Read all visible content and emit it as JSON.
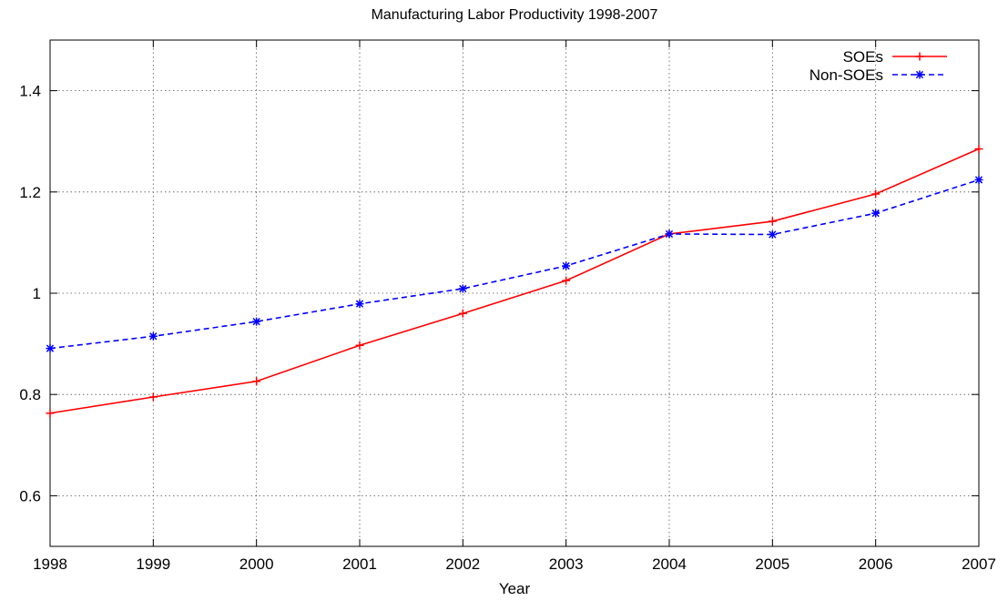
{
  "chart_data": {
    "type": "line",
    "title": "Manufacturing Labor Productivity 1998-2007",
    "xlabel": "Year",
    "ylabel": "",
    "x": [
      1998,
      1999,
      2000,
      2001,
      2002,
      2003,
      2004,
      2005,
      2006,
      2007
    ],
    "xlim": [
      1998,
      2007
    ],
    "ylim": [
      0.5,
      1.5
    ],
    "yticks": [
      0.6,
      0.8,
      1.0,
      1.2,
      1.4
    ],
    "ytick_labels": [
      "0.6",
      "0.8",
      "1",
      "1.2",
      "1.4"
    ],
    "xtick_labels": [
      "1998",
      "1999",
      "2000",
      "2001",
      "2002",
      "2003",
      "2004",
      "2005",
      "2006",
      "2007"
    ],
    "grid": true,
    "legend_position": "top-right",
    "series": [
      {
        "name": "SOEs",
        "color": "#ff0000",
        "line_style": "solid",
        "marker": "plus",
        "values": [
          0.763,
          0.795,
          0.826,
          0.897,
          0.96,
          1.025,
          1.117,
          1.142,
          1.196,
          1.285
        ]
      },
      {
        "name": "Non-SOEs",
        "color": "#0000ff",
        "line_style": "dashed",
        "marker": "star",
        "values": [
          0.891,
          0.915,
          0.944,
          0.979,
          1.009,
          1.054,
          1.117,
          1.116,
          1.158,
          1.224
        ]
      }
    ]
  }
}
